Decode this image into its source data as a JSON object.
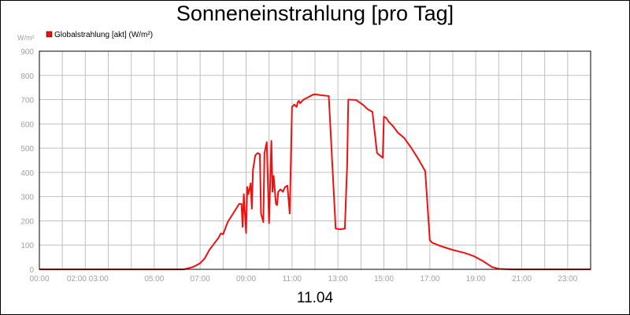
{
  "chart_data": {
    "type": "line",
    "title": "Sonneneinstrahlung [pro Tag]",
    "ylabel": "W/m²",
    "xlabel": "11.04",
    "ylim": [
      0,
      900
    ],
    "xlim": [
      0,
      24
    ],
    "y_ticks": [
      0,
      100,
      200,
      300,
      400,
      500,
      600,
      700,
      800,
      900
    ],
    "x_ticks": [
      {
        "t": 0,
        "label": "00:00"
      },
      {
        "t": 2.1,
        "label": "02:00 03:00"
      },
      {
        "t": 5,
        "label": "05:00"
      },
      {
        "t": 7,
        "label": "07:00"
      },
      {
        "t": 9,
        "label": "09:00"
      },
      {
        "t": 11,
        "label": "11:00"
      },
      {
        "t": 13,
        "label": "13:00"
      },
      {
        "t": 15,
        "label": "15:00"
      },
      {
        "t": 17,
        "label": "17:00"
      },
      {
        "t": 19,
        "label": "19:00"
      },
      {
        "t": 21,
        "label": "21:00"
      },
      {
        "t": 23,
        "label": "23:00"
      }
    ],
    "grid": true,
    "legend_position": "top-left",
    "series": [
      {
        "name": "Globalstrahlung [akt] (W/m²)",
        "color": "#ee1111",
        "x": [
          0,
          6.3,
          6.7,
          7.0,
          7.2,
          7.4,
          7.6,
          7.8,
          7.9,
          8.0,
          8.2,
          8.4,
          8.6,
          8.7,
          8.8,
          8.85,
          8.9,
          8.95,
          9.0,
          9.05,
          9.1,
          9.2,
          9.25,
          9.3,
          9.35,
          9.4,
          9.5,
          9.6,
          9.65,
          9.75,
          9.8,
          9.9,
          10.0,
          10.1,
          10.15,
          10.2,
          10.3,
          10.35,
          10.4,
          10.5,
          10.6,
          10.7,
          10.8,
          10.9,
          11.0,
          11.1,
          11.2,
          11.25,
          11.3,
          11.35,
          11.45,
          11.5,
          11.6,
          11.7,
          11.8,
          11.9,
          12.0,
          12.3,
          12.6,
          12.9,
          13.1,
          13.3,
          13.4,
          13.45,
          13.55,
          13.8,
          13.95,
          14.1,
          14.3,
          14.5,
          14.7,
          14.95,
          15.0,
          15.1,
          15.2,
          15.4,
          15.6,
          15.9,
          16.2,
          16.5,
          16.8,
          17.0,
          17.1,
          17.5,
          18.0,
          18.5,
          18.9,
          19.3,
          19.7,
          20.0,
          20.5,
          24.0
        ],
        "values": [
          0,
          0,
          10,
          25,
          45,
          80,
          105,
          130,
          148,
          145,
          195,
          225,
          255,
          270,
          270,
          175,
          310,
          230,
          150,
          340,
          310,
          355,
          250,
          410,
          440,
          470,
          480,
          475,
          230,
          195,
          480,
          525,
          190,
          530,
          320,
          385,
          270,
          265,
          320,
          330,
          320,
          340,
          345,
          230,
          670,
          680,
          670,
          690,
          695,
          685,
          695,
          700,
          705,
          710,
          715,
          720,
          722,
          718,
          715,
          168,
          165,
          168,
          430,
          700,
          700,
          698,
          688,
          678,
          660,
          650,
          480,
          460,
          630,
          625,
          610,
          590,
          565,
          540,
          500,
          455,
          405,
          120,
          110,
          95,
          80,
          68,
          55,
          35,
          10,
          2,
          0,
          0
        ]
      }
    ]
  }
}
